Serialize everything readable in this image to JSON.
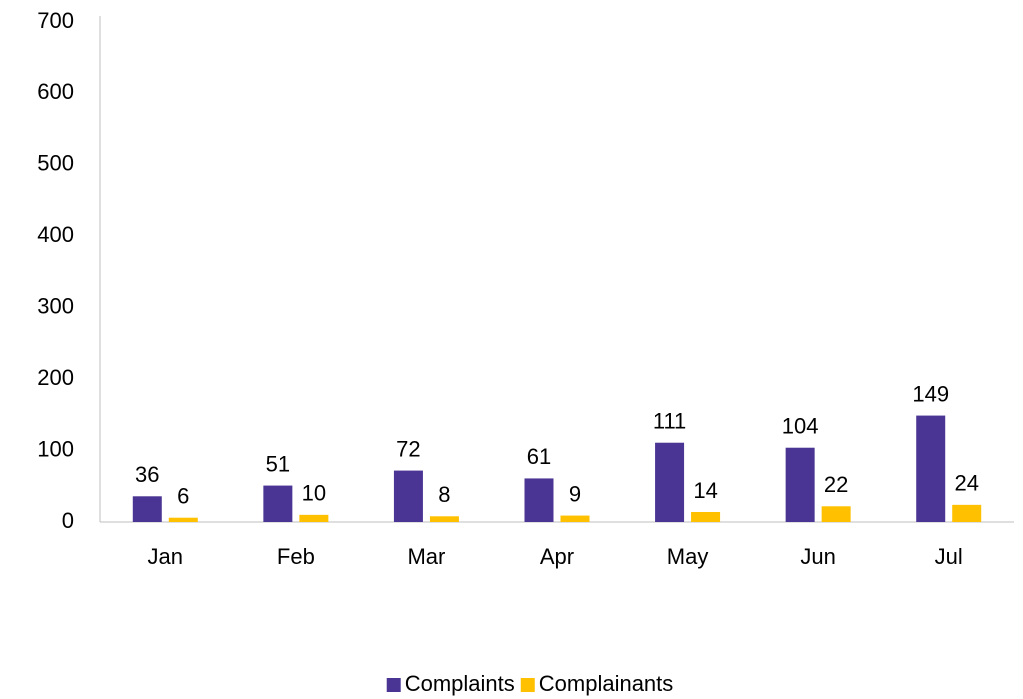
{
  "chart_data": {
    "type": "bar",
    "categories": [
      "Jan",
      "Feb",
      "Mar",
      "Apr",
      "May",
      "Jun",
      "Jul"
    ],
    "series": [
      {
        "name": "Complaints",
        "color": "#4b3594",
        "values": [
          36,
          51,
          72,
          61,
          111,
          104,
          149
        ]
      },
      {
        "name": "Complainants",
        "color": "#ffc000",
        "values": [
          6,
          10,
          8,
          9,
          14,
          22,
          24
        ]
      }
    ],
    "ylim": [
      0,
      700
    ],
    "yticks": [
      0,
      100,
      200,
      300,
      400,
      500,
      600,
      700
    ],
    "grid": false,
    "legend": "bottom"
  }
}
